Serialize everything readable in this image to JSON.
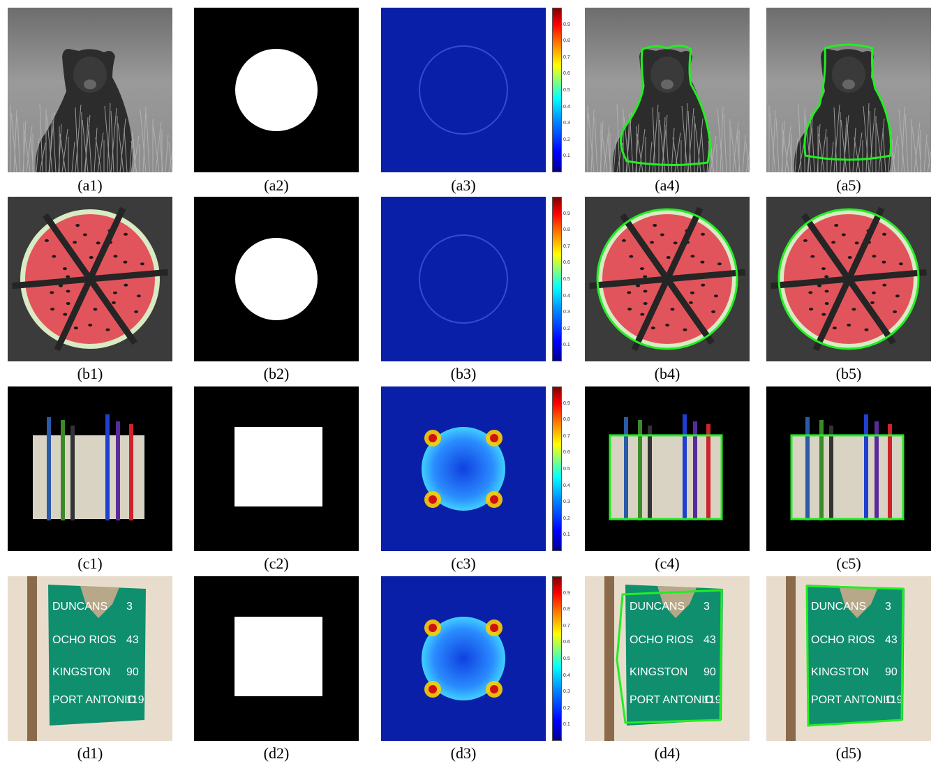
{
  "figure": {
    "rows": [
      {
        "id": "a",
        "captions": [
          "(a1)",
          "(a2)",
          "(a3)",
          "(a4)",
          "(a5)"
        ],
        "mask": "circle",
        "error_map": "ring"
      },
      {
        "id": "b",
        "captions": [
          "(b1)",
          "(b2)",
          "(b3)",
          "(b4)",
          "(b5)"
        ],
        "mask": "circle",
        "error_map": "ring"
      },
      {
        "id": "c",
        "captions": [
          "(c1)",
          "(c2)",
          "(c3)",
          "(c4)",
          "(c5)"
        ],
        "mask": "square",
        "error_map": "disk"
      },
      {
        "id": "d",
        "captions": [
          "(d1)",
          "(d2)",
          "(d3)",
          "(d4)",
          "(d5)"
        ],
        "mask": "square",
        "error_map": "disk"
      }
    ],
    "colorbar_ticks": [
      "0.9",
      "0.8",
      "0.7",
      "0.6",
      "0.5",
      "0.4",
      "0.3",
      "0.2",
      "0.1"
    ],
    "sign_text": [
      "DUNCANS",
      "OCHO RIOS",
      "KINGSTON",
      "PORT ANTONIO"
    ],
    "sign_numbers": [
      "3",
      "43",
      "90",
      "119"
    ],
    "colors": {
      "contour": "#22ee22",
      "jet_low": "#0a1fa8",
      "sign_green": "#0f8f6e",
      "background_gray": "#3b3b3b"
    }
  }
}
